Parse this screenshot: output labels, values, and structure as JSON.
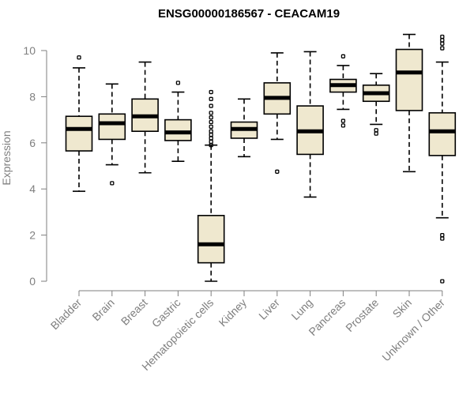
{
  "chart_data": {
    "type": "boxplot",
    "title": "ENSG00000186567 - CEACAM19",
    "ylabel": "Expression",
    "xlabel": "",
    "ylim": [
      0,
      10.8
    ],
    "yticks": [
      0,
      2,
      4,
      6,
      8,
      10
    ],
    "categories": [
      "Bladder",
      "Brain",
      "Breast",
      "Gastric",
      "Hematopoietic cells",
      "Kidney",
      "Liver",
      "Lung",
      "Pancreas",
      "Prostate",
      "Skin",
      "Unknown / Other"
    ],
    "boxes": [
      {
        "whisker_low": 3.9,
        "q1": 5.65,
        "median": 6.6,
        "q3": 7.15,
        "whisker_high": 9.25,
        "outliers": [
          9.7
        ]
      },
      {
        "whisker_low": 5.05,
        "q1": 6.15,
        "median": 6.85,
        "q3": 7.25,
        "whisker_high": 8.55,
        "outliers": [
          4.25
        ]
      },
      {
        "whisker_low": 4.7,
        "q1": 6.5,
        "median": 7.15,
        "q3": 7.9,
        "whisker_high": 9.5,
        "outliers": []
      },
      {
        "whisker_low": 5.2,
        "q1": 6.1,
        "median": 6.45,
        "q3": 7.0,
        "whisker_high": 8.2,
        "outliers": [
          8.6
        ]
      },
      {
        "whisker_low": 0.0,
        "q1": 0.8,
        "median": 1.6,
        "q3": 2.85,
        "whisker_high": 5.9,
        "outliers": [
          5.9,
          6.05,
          6.2,
          6.35,
          6.5,
          6.7,
          6.9,
          7.1,
          7.3,
          7.6,
          7.9,
          8.2
        ]
      },
      {
        "whisker_low": 5.4,
        "q1": 6.2,
        "median": 6.6,
        "q3": 6.9,
        "whisker_high": 7.9,
        "outliers": []
      },
      {
        "whisker_low": 6.15,
        "q1": 7.25,
        "median": 7.95,
        "q3": 8.6,
        "whisker_high": 9.9,
        "outliers": [
          4.75
        ]
      },
      {
        "whisker_low": 3.65,
        "q1": 5.5,
        "median": 6.5,
        "q3": 7.6,
        "whisker_high": 9.95,
        "outliers": []
      },
      {
        "whisker_low": 7.45,
        "q1": 8.2,
        "median": 8.5,
        "q3": 8.75,
        "whisker_high": 9.35,
        "outliers": [
          6.75,
          6.95,
          9.75
        ]
      },
      {
        "whisker_low": 6.8,
        "q1": 7.8,
        "median": 8.15,
        "q3": 8.5,
        "whisker_high": 9.0,
        "outliers": [
          6.4,
          6.55
        ]
      },
      {
        "whisker_low": 4.75,
        "q1": 7.4,
        "median": 9.05,
        "q3": 10.05,
        "whisker_high": 10.7,
        "outliers": []
      },
      {
        "whisker_low": 2.75,
        "q1": 5.45,
        "median": 6.5,
        "q3": 7.3,
        "whisker_high": 9.5,
        "outliers": [
          0.0,
          1.85,
          2.0,
          10.1,
          10.3,
          10.45,
          10.6
        ]
      }
    ],
    "colors": {
      "box_fill": "#efe8cf",
      "box_stroke": "#000000",
      "axis": "#7f7f7f",
      "title": "#000000"
    }
  }
}
